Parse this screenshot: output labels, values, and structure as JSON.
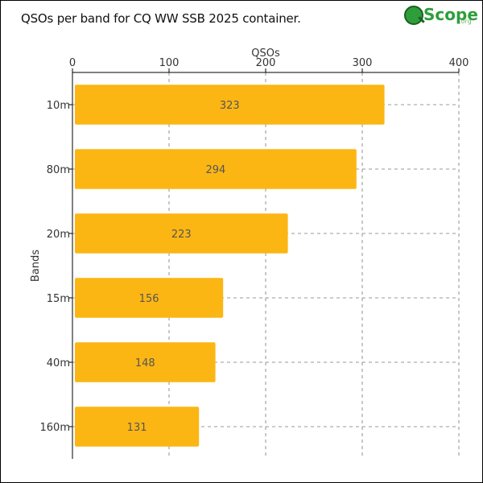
{
  "header": {
    "title": "QSOs per band for CQ WW SSB 2025 container.",
    "logo_text": "Scope",
    "logo_tld": ".org"
  },
  "chart_data": {
    "type": "bar",
    "orientation": "horizontal",
    "categories": [
      "10m",
      "80m",
      "20m",
      "15m",
      "40m",
      "160m"
    ],
    "values": [
      323,
      294,
      223,
      156,
      148,
      131
    ],
    "title": "QSOs per band for CQ WW SSB 2025 container.",
    "xlabel": "QSOs",
    "ylabel": "Bands",
    "xlim": [
      0,
      400
    ],
    "x_ticks": [
      0,
      100,
      200,
      300,
      400
    ],
    "x_axis_position": "top",
    "grid": true,
    "bar_color": "#fbb614",
    "data_labels": true
  }
}
